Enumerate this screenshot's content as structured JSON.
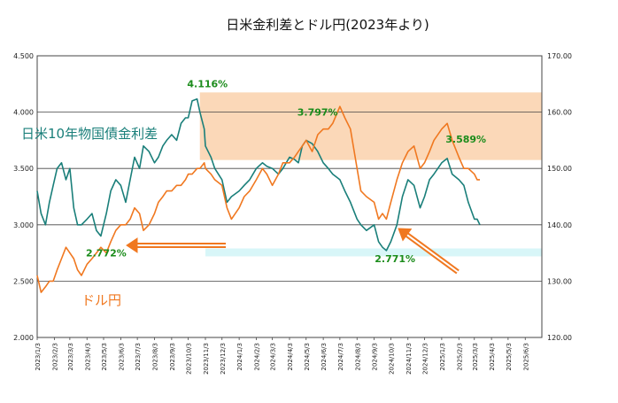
{
  "chart_data": {
    "type": "line",
    "title": "日米金利差とドル円(2023年より)",
    "left_axis": {
      "ylim": [
        2.0,
        4.5
      ],
      "ticks": [
        "2.000",
        "2.500",
        "3.000",
        "3.500",
        "4.000",
        "4.500"
      ]
    },
    "right_axis": {
      "ylim": [
        120,
        170
      ],
      "ticks": [
        "120.00",
        "130.00",
        "140.00",
        "150.00",
        "160.00",
        "170.00"
      ]
    },
    "x_ticks": [
      "2023/1/3",
      "2023/2/3",
      "2023/3/3",
      "2023/4/3",
      "2023/5/3",
      "2023/6/3",
      "2023/7/3",
      "2023/8/3",
      "2023/9/3",
      "2023/10/3",
      "2023/11/3",
      "2023/12/3",
      "2024/1/3",
      "2024/2/3",
      "2024/3/3",
      "2024/4/3",
      "2024/5/3",
      "2024/6/3",
      "2024/7/3",
      "2024/8/3",
      "2024/9/3",
      "2024/10/3",
      "2024/11/3",
      "2024/12/3",
      "2025/1/3",
      "2025/2/3",
      "2025/3/3",
      "2025/4/3",
      "2025/5/3",
      "2025/6/3"
    ],
    "grid": "horizontal",
    "series": [
      {
        "name": "日米10年物国債金利差",
        "axis": "left",
        "color": "#1a7f7a",
        "x": [
          "2023/1/3",
          "2023/1/10",
          "2023/1/18",
          "2023/1/25",
          "2023/2/1",
          "2023/2/8",
          "2023/2/16",
          "2023/2/24",
          "2023/3/3",
          "2023/3/10",
          "2023/3/17",
          "2023/3/24",
          "2023/4/3",
          "2023/4/12",
          "2023/4/20",
          "2023/4/28",
          "2023/5/8",
          "2023/5/16",
          "2023/5/25",
          "2023/6/3",
          "2023/6/12",
          "2023/6/20",
          "2023/6/28",
          "2023/7/7",
          "2023/7/14",
          "2023/7/24",
          "2023/8/3",
          "2023/8/10",
          "2023/8/18",
          "2023/8/25",
          "2023/9/3",
          "2023/9/12",
          "2023/9/20",
          "2023/9/28",
          "2023/10/3",
          "2023/10/10",
          "2023/10/19",
          "2023/10/24",
          "2023/11/1",
          "2023/11/3",
          "2023/11/13",
          "2023/11/20",
          "2023/12/3",
          "2023/12/12",
          "2023/12/20",
          "2024/1/3",
          "2024/1/12",
          "2024/1/22",
          "2024/2/3",
          "2024/2/14",
          "2024/2/22",
          "2024/3/3",
          "2024/3/14",
          "2024/3/22",
          "2024/4/3",
          "2024/4/12",
          "2024/4/19",
          "2024/4/26",
          "2024/5/3",
          "2024/5/14",
          "2024/5/24",
          "2024/6/3",
          "2024/6/12",
          "2024/6/20",
          "2024/7/3",
          "2024/7/12",
          "2024/7/22",
          "2024/8/3",
          "2024/8/10",
          "2024/8/20",
          "2024/9/3",
          "2024/9/11",
          "2024/9/18",
          "2024/9/25",
          "2024/10/3",
          "2024/10/14",
          "2024/10/24",
          "2024/11/3",
          "2024/11/14",
          "2024/11/25",
          "2024/12/3",
          "2024/12/12",
          "2024/12/20",
          "2025/1/3",
          "2025/1/13",
          "2025/1/22",
          "2025/2/3",
          "2025/2/12",
          "2025/2/20",
          "2025/3/3",
          "2025/3/8",
          "2025/3/13"
        ],
        "values": [
          3.3,
          3.1,
          3.0,
          3.2,
          3.35,
          3.5,
          3.55,
          3.4,
          3.5,
          3.15,
          3.0,
          3.0,
          3.05,
          3.1,
          2.95,
          2.9,
          3.1,
          3.3,
          3.4,
          3.35,
          3.2,
          3.4,
          3.6,
          3.5,
          3.7,
          3.65,
          3.55,
          3.6,
          3.7,
          3.75,
          3.8,
          3.75,
          3.9,
          3.95,
          3.95,
          4.1,
          4.116,
          4.0,
          3.85,
          3.7,
          3.6,
          3.5,
          3.4,
          3.2,
          3.25,
          3.3,
          3.35,
          3.4,
          3.5,
          3.55,
          3.52,
          3.5,
          3.45,
          3.5,
          3.6,
          3.58,
          3.55,
          3.7,
          3.75,
          3.72,
          3.65,
          3.55,
          3.5,
          3.45,
          3.4,
          3.3,
          3.2,
          3.05,
          3.0,
          2.95,
          3.0,
          2.85,
          2.8,
          2.771,
          2.85,
          3.0,
          3.25,
          3.4,
          3.35,
          3.15,
          3.25,
          3.4,
          3.45,
          3.55,
          3.589,
          3.45,
          3.4,
          3.35,
          3.2,
          3.05,
          3.05,
          3.0
        ]
      },
      {
        "name": "ドル円",
        "axis": "right",
        "color": "#f07820",
        "x": [
          "2023/1/3",
          "2023/1/10",
          "2023/1/18",
          "2023/1/25",
          "2023/2/1",
          "2023/2/8",
          "2023/2/16",
          "2023/2/24",
          "2023/3/3",
          "2023/3/10",
          "2023/3/17",
          "2023/3/24",
          "2023/4/3",
          "2023/4/12",
          "2023/4/20",
          "2023/4/28",
          "2023/5/8",
          "2023/5/16",
          "2023/5/25",
          "2023/6/3",
          "2023/6/12",
          "2023/6/20",
          "2023/6/28",
          "2023/7/7",
          "2023/7/14",
          "2023/7/24",
          "2023/8/3",
          "2023/8/10",
          "2023/8/18",
          "2023/8/25",
          "2023/9/3",
          "2023/9/12",
          "2023/9/20",
          "2023/9/28",
          "2023/10/3",
          "2023/10/10",
          "2023/10/19",
          "2023/10/24",
          "2023/11/1",
          "2023/11/3",
          "2023/11/13",
          "2023/11/20",
          "2023/12/3",
          "2023/12/12",
          "2023/12/20",
          "2024/1/3",
          "2024/1/12",
          "2024/1/22",
          "2024/2/3",
          "2024/2/14",
          "2024/2/22",
          "2024/3/3",
          "2024/3/14",
          "2024/3/22",
          "2024/4/3",
          "2024/4/12",
          "2024/4/19",
          "2024/4/26",
          "2024/5/3",
          "2024/5/14",
          "2024/5/24",
          "2024/6/3",
          "2024/6/12",
          "2024/6/20",
          "2024/7/3",
          "2024/7/12",
          "2024/7/22",
          "2024/8/3",
          "2024/8/10",
          "2024/8/20",
          "2024/9/3",
          "2024/9/11",
          "2024/9/18",
          "2024/9/25",
          "2024/10/3",
          "2024/10/14",
          "2024/10/24",
          "2024/11/3",
          "2024/11/14",
          "2024/11/25",
          "2024/12/3",
          "2024/12/12",
          "2024/12/20",
          "2025/1/3",
          "2025/1/13",
          "2025/1/22",
          "2025/2/3",
          "2025/2/12",
          "2025/2/20",
          "2025/3/3",
          "2025/3/8",
          "2025/3/13"
        ],
        "values": [
          131,
          128,
          129,
          130,
          130,
          132,
          134,
          136,
          135,
          134,
          132,
          131,
          133,
          134,
          135,
          136,
          135,
          137,
          139,
          140,
          140,
          141,
          143,
          142,
          139,
          140,
          142,
          144,
          145,
          146,
          146,
          147,
          147,
          148,
          149,
          149,
          150,
          150,
          151,
          150,
          149,
          148,
          147,
          143,
          141,
          143,
          145,
          146,
          148,
          150,
          149,
          147,
          149,
          151,
          151,
          152,
          153,
          154,
          155,
          153,
          156,
          157,
          157,
          158,
          161,
          159,
          157,
          150,
          146,
          145,
          144,
          141,
          142,
          141,
          144,
          148,
          151,
          153,
          154,
          150,
          151,
          153,
          155,
          157,
          158,
          155,
          152,
          150,
          150,
          149,
          148,
          148
        ]
      }
    ],
    "annotations": [
      {
        "text": "4.116%",
        "color": "#1b8c1b"
      },
      {
        "text": "3.797%",
        "color": "#1b8c1b"
      },
      {
        "text": "3.589%",
        "color": "#1b8c1b"
      },
      {
        "text": "2.771%",
        "color": "#1b8c1b"
      },
      {
        "text": "2.772%",
        "color": "#1b8c1b"
      }
    ],
    "series_labels": [
      {
        "text": "日米10年物国債金利差",
        "color": "#1a7f7a"
      },
      {
        "text": "ドル円",
        "color": "#f07820"
      }
    ],
    "highlight_band_color": "#fbd8b8",
    "lowband_color": "#d8f6f8"
  }
}
